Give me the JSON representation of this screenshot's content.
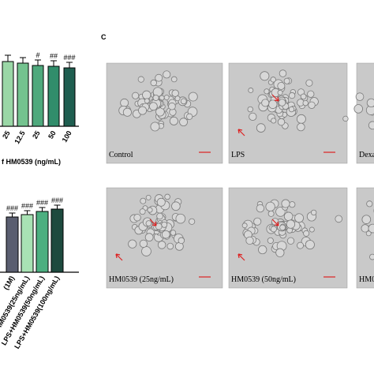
{
  "chart_data": [
    {
      "type": "bar",
      "x_label": "f HM0539 (ng/mL)",
      "categories": [
        "25",
        "12.5",
        "25",
        "50",
        "100"
      ],
      "values": [
        82,
        80,
        77,
        76,
        74
      ],
      "errors": [
        8,
        7,
        7,
        7,
        7
      ],
      "annotations": [
        null,
        null,
        "#",
        "##",
        "###"
      ],
      "colors": [
        "#9ad7a6",
        "#74c38f",
        "#4fa97d",
        "#318d6b",
        "#1f5e50"
      ],
      "ylim": [
        0,
        120
      ]
    },
    {
      "type": "bar",
      "categories": [
        "(1M)",
        "LPS+HM0539(25ng/mL)",
        "LPS+HM0539(50ng/mL)",
        "LPS+HM0539(100ng/mL)"
      ],
      "values": [
        70,
        73,
        77,
        80
      ],
      "errors": [
        5,
        5,
        5,
        5
      ],
      "annotations": [
        "###",
        "###",
        "###",
        "###"
      ],
      "colors": [
        "#5a5e70",
        "#a8e2b4",
        "#4caf80",
        "#1d4a3e"
      ],
      "ylim": [
        0,
        120
      ]
    }
  ],
  "panel_c": {
    "label": "C",
    "images": [
      "Control",
      "LPS",
      "Dexa",
      "HM0539 (25ng/mL)",
      "HM0539 (50ng/mL)",
      "HM0"
    ]
  }
}
